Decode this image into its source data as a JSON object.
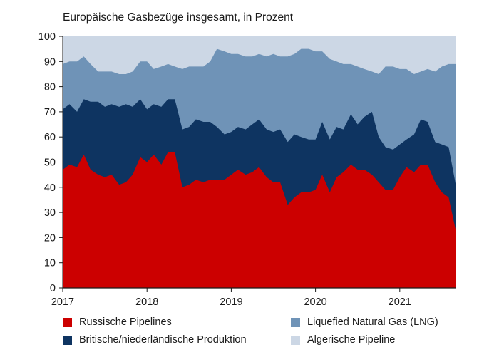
{
  "chart_data": {
    "type": "area",
    "title": "Europäische Gasbezüge insgesamt, in Prozent",
    "ylim": [
      0,
      100
    ],
    "yticks": [
      0,
      10,
      20,
      30,
      40,
      50,
      60,
      70,
      80,
      90,
      100
    ],
    "xlim": [
      2017.0,
      2021.67
    ],
    "xticks": [
      {
        "value": 2017,
        "label": "2017"
      },
      {
        "value": 2018,
        "label": "2018"
      },
      {
        "value": 2019,
        "label": "2019"
      },
      {
        "value": 2020,
        "label": "2020"
      },
      {
        "value": 2021,
        "label": "2021"
      }
    ],
    "stacked": true,
    "x": [
      2017.0,
      2017.08,
      2017.17,
      2017.25,
      2017.33,
      2017.42,
      2017.5,
      2017.58,
      2017.67,
      2017.75,
      2017.83,
      2017.92,
      2018.0,
      2018.08,
      2018.17,
      2018.25,
      2018.33,
      2018.42,
      2018.5,
      2018.58,
      2018.67,
      2018.75,
      2018.83,
      2018.92,
      2019.0,
      2019.08,
      2019.17,
      2019.25,
      2019.33,
      2019.42,
      2019.5,
      2019.58,
      2019.67,
      2019.75,
      2019.83,
      2019.92,
      2020.0,
      2020.08,
      2020.17,
      2020.25,
      2020.33,
      2020.42,
      2020.5,
      2020.58,
      2020.67,
      2020.75,
      2020.83,
      2020.92,
      2021.0,
      2021.08,
      2021.17,
      2021.25,
      2021.33,
      2021.42,
      2021.5,
      2021.58,
      2021.67
    ],
    "series": [
      {
        "name": "Russische Pipelines",
        "color": "#cc0000",
        "values": [
          47,
          49,
          48,
          53,
          47,
          45,
          44,
          45,
          41,
          42,
          45,
          52,
          50,
          53,
          49,
          54,
          54,
          40,
          41,
          43,
          42,
          43,
          43,
          43,
          45,
          47,
          45,
          46,
          48,
          44,
          42,
          42,
          33,
          36,
          38,
          38,
          39,
          45,
          38,
          44,
          46,
          49,
          47,
          47,
          45,
          42,
          39,
          39,
          44,
          48,
          46,
          49,
          49,
          42,
          38,
          36,
          22
        ]
      },
      {
        "name": "Britische/niederländische Produktion",
        "color": "#0e3461",
        "values": [
          71,
          73,
          70,
          75,
          74,
          74,
          72,
          73,
          72,
          73,
          72,
          75,
          71,
          73,
          72,
          75,
          75,
          63,
          64,
          67,
          66,
          66,
          64,
          61,
          62,
          64,
          63,
          65,
          67,
          63,
          62,
          63,
          58,
          61,
          60,
          59,
          59,
          66,
          59,
          64,
          63,
          69,
          65,
          68,
          70,
          60,
          56,
          55,
          57,
          59,
          61,
          67,
          66,
          58,
          57,
          56,
          40
        ]
      },
      {
        "name": "Liquefied Natural Gas (LNG)",
        "color": "#6f93b7",
        "values": [
          89,
          90,
          90,
          92,
          89,
          86,
          86,
          86,
          85,
          85,
          86,
          90,
          90,
          87,
          88,
          89,
          88,
          87,
          88,
          88,
          88,
          90,
          95,
          94,
          93,
          93,
          92,
          92,
          93,
          92,
          93,
          92,
          92,
          93,
          95,
          95,
          94,
          94,
          91,
          90,
          89,
          89,
          88,
          87,
          86,
          85,
          88,
          88,
          87,
          87,
          85,
          86,
          87,
          86,
          88,
          89,
          89
        ]
      },
      {
        "name": "Algerische Pipeline",
        "color": "#ccd7e5",
        "values": [
          100,
          100,
          100,
          100,
          100,
          100,
          100,
          100,
          100,
          100,
          100,
          100,
          100,
          100,
          100,
          100,
          100,
          100,
          100,
          100,
          100,
          100,
          100,
          100,
          100,
          100,
          100,
          100,
          100,
          100,
          100,
          100,
          100,
          100,
          100,
          100,
          100,
          100,
          100,
          100,
          100,
          100,
          100,
          100,
          100,
          100,
          100,
          100,
          100,
          100,
          100,
          100,
          100,
          100,
          100,
          100,
          100
        ]
      }
    ],
    "legend": [
      {
        "label": "Russische Pipelines",
        "color": "#cc0000"
      },
      {
        "label": "Liquefied Natural Gas (LNG)",
        "color": "#6f93b7"
      },
      {
        "label": "Britische/niederländische Produktion",
        "color": "#0e3461"
      },
      {
        "label": "Algerische Pipeline",
        "color": "#ccd7e5"
      }
    ],
    "legend_position": "bottom"
  }
}
